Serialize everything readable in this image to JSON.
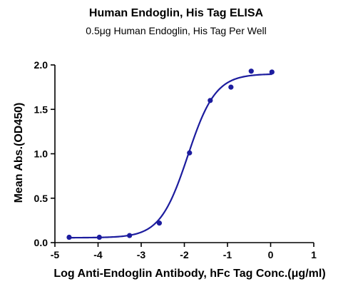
{
  "chart_data": {
    "type": "scatter",
    "title": "Human Endoglin, His Tag ELISA",
    "subtitle": "0.5μg Human Endoglin, His Tag Per Well",
    "xlabel": "Log  Anti-Endoglin Antibody, hFc Tag Conc.(μg/ml)",
    "ylabel": "Mean Abs.(OD450)",
    "xlim": [
      -5,
      1
    ],
    "ylim": [
      0,
      2.0
    ],
    "x_ticks": [
      "-5",
      "-4",
      "-3",
      "-2",
      "-1",
      "0",
      "1"
    ],
    "y_ticks": [
      "0.0",
      "0.5",
      "1.0",
      "1.5",
      "2.0"
    ],
    "grid": false,
    "series": [
      {
        "points": [
          {
            "x": -4.67,
            "y": 0.06
          },
          {
            "x": -3.97,
            "y": 0.06
          },
          {
            "x": -3.27,
            "y": 0.08
          },
          {
            "x": -2.58,
            "y": 0.22
          },
          {
            "x": -1.88,
            "y": 1.01
          },
          {
            "x": -1.4,
            "y": 1.6
          },
          {
            "x": -0.92,
            "y": 1.75
          },
          {
            "x": -0.45,
            "y": 1.93
          },
          {
            "x": 0.03,
            "y": 1.92
          }
        ],
        "fit": {
          "bottom": 0.055,
          "top": 1.9,
          "log_ec50": -1.92,
          "hill_slope": 1.35
        }
      }
    ],
    "colors": {
      "series": "#1c1c9e",
      "axis": "#000000"
    }
  }
}
